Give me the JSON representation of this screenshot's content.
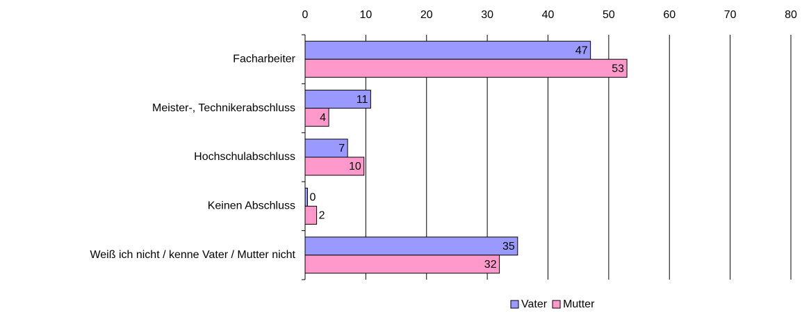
{
  "chart_data": {
    "type": "hbar",
    "categories": [
      "Facharbeiter",
      "Meister-, Technikerabschluss",
      "Hochschulabschluss",
      "Keinen Abschluss",
      "Weiß ich nicht   /   kenne Vater / Mutter nicht"
    ],
    "series": [
      {
        "name": "Vater",
        "color": "#9999ff",
        "values": [
          47,
          10.8,
          7,
          0.4,
          35
        ],
        "value_labels": [
          "47",
          "11",
          "7",
          "0",
          "35"
        ]
      },
      {
        "name": "Mutter",
        "color": "#ff99cc",
        "values": [
          53,
          3.9,
          9.7,
          1.9,
          32
        ],
        "value_labels": [
          "53",
          "4",
          "10",
          "2",
          "32"
        ]
      }
    ],
    "xlim": [
      0,
      80
    ],
    "xticks": [
      0,
      10,
      20,
      30,
      40,
      50,
      60,
      70,
      80
    ],
    "grid": true,
    "legend": "bottom"
  }
}
